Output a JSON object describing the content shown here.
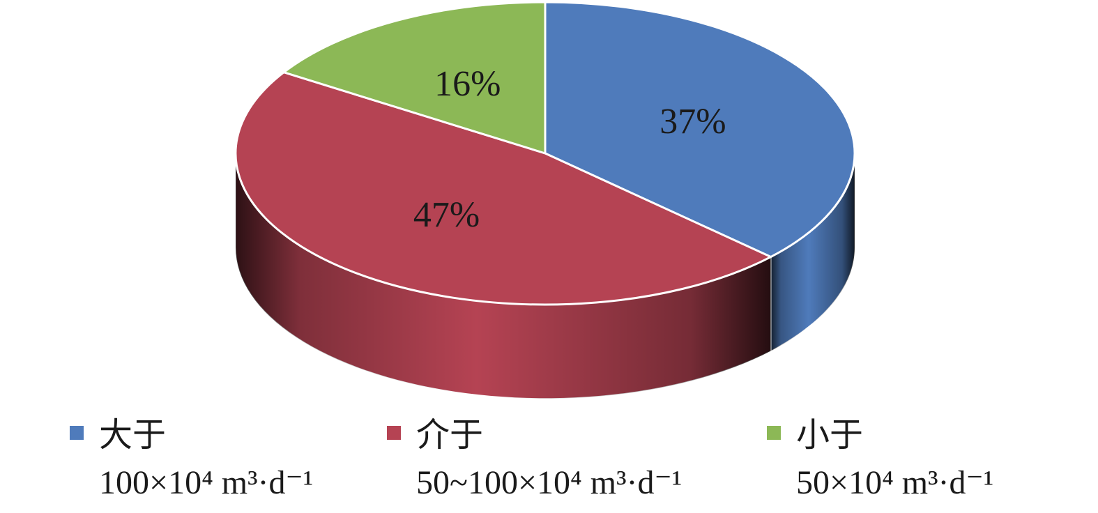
{
  "chart_data": {
    "type": "pie",
    "style": "3d",
    "series": [
      {
        "name": "大于\n100×10⁴ m³·d⁻¹",
        "color": "#4f7bbb",
        "values": [
          37
        ],
        "value_labels": [
          "37%"
        ]
      },
      {
        "name": "介于\n50~100×10⁴ m³·d⁻¹",
        "color": "#b54353",
        "values": [
          47
        ],
        "value_labels": [
          "47%"
        ]
      },
      {
        "name": "小于\n50×10⁴ m³·d⁻¹",
        "color": "#8cb856",
        "values": [
          16
        ],
        "value_labels": [
          "16%"
        ]
      }
    ],
    "legend": "bottom"
  }
}
